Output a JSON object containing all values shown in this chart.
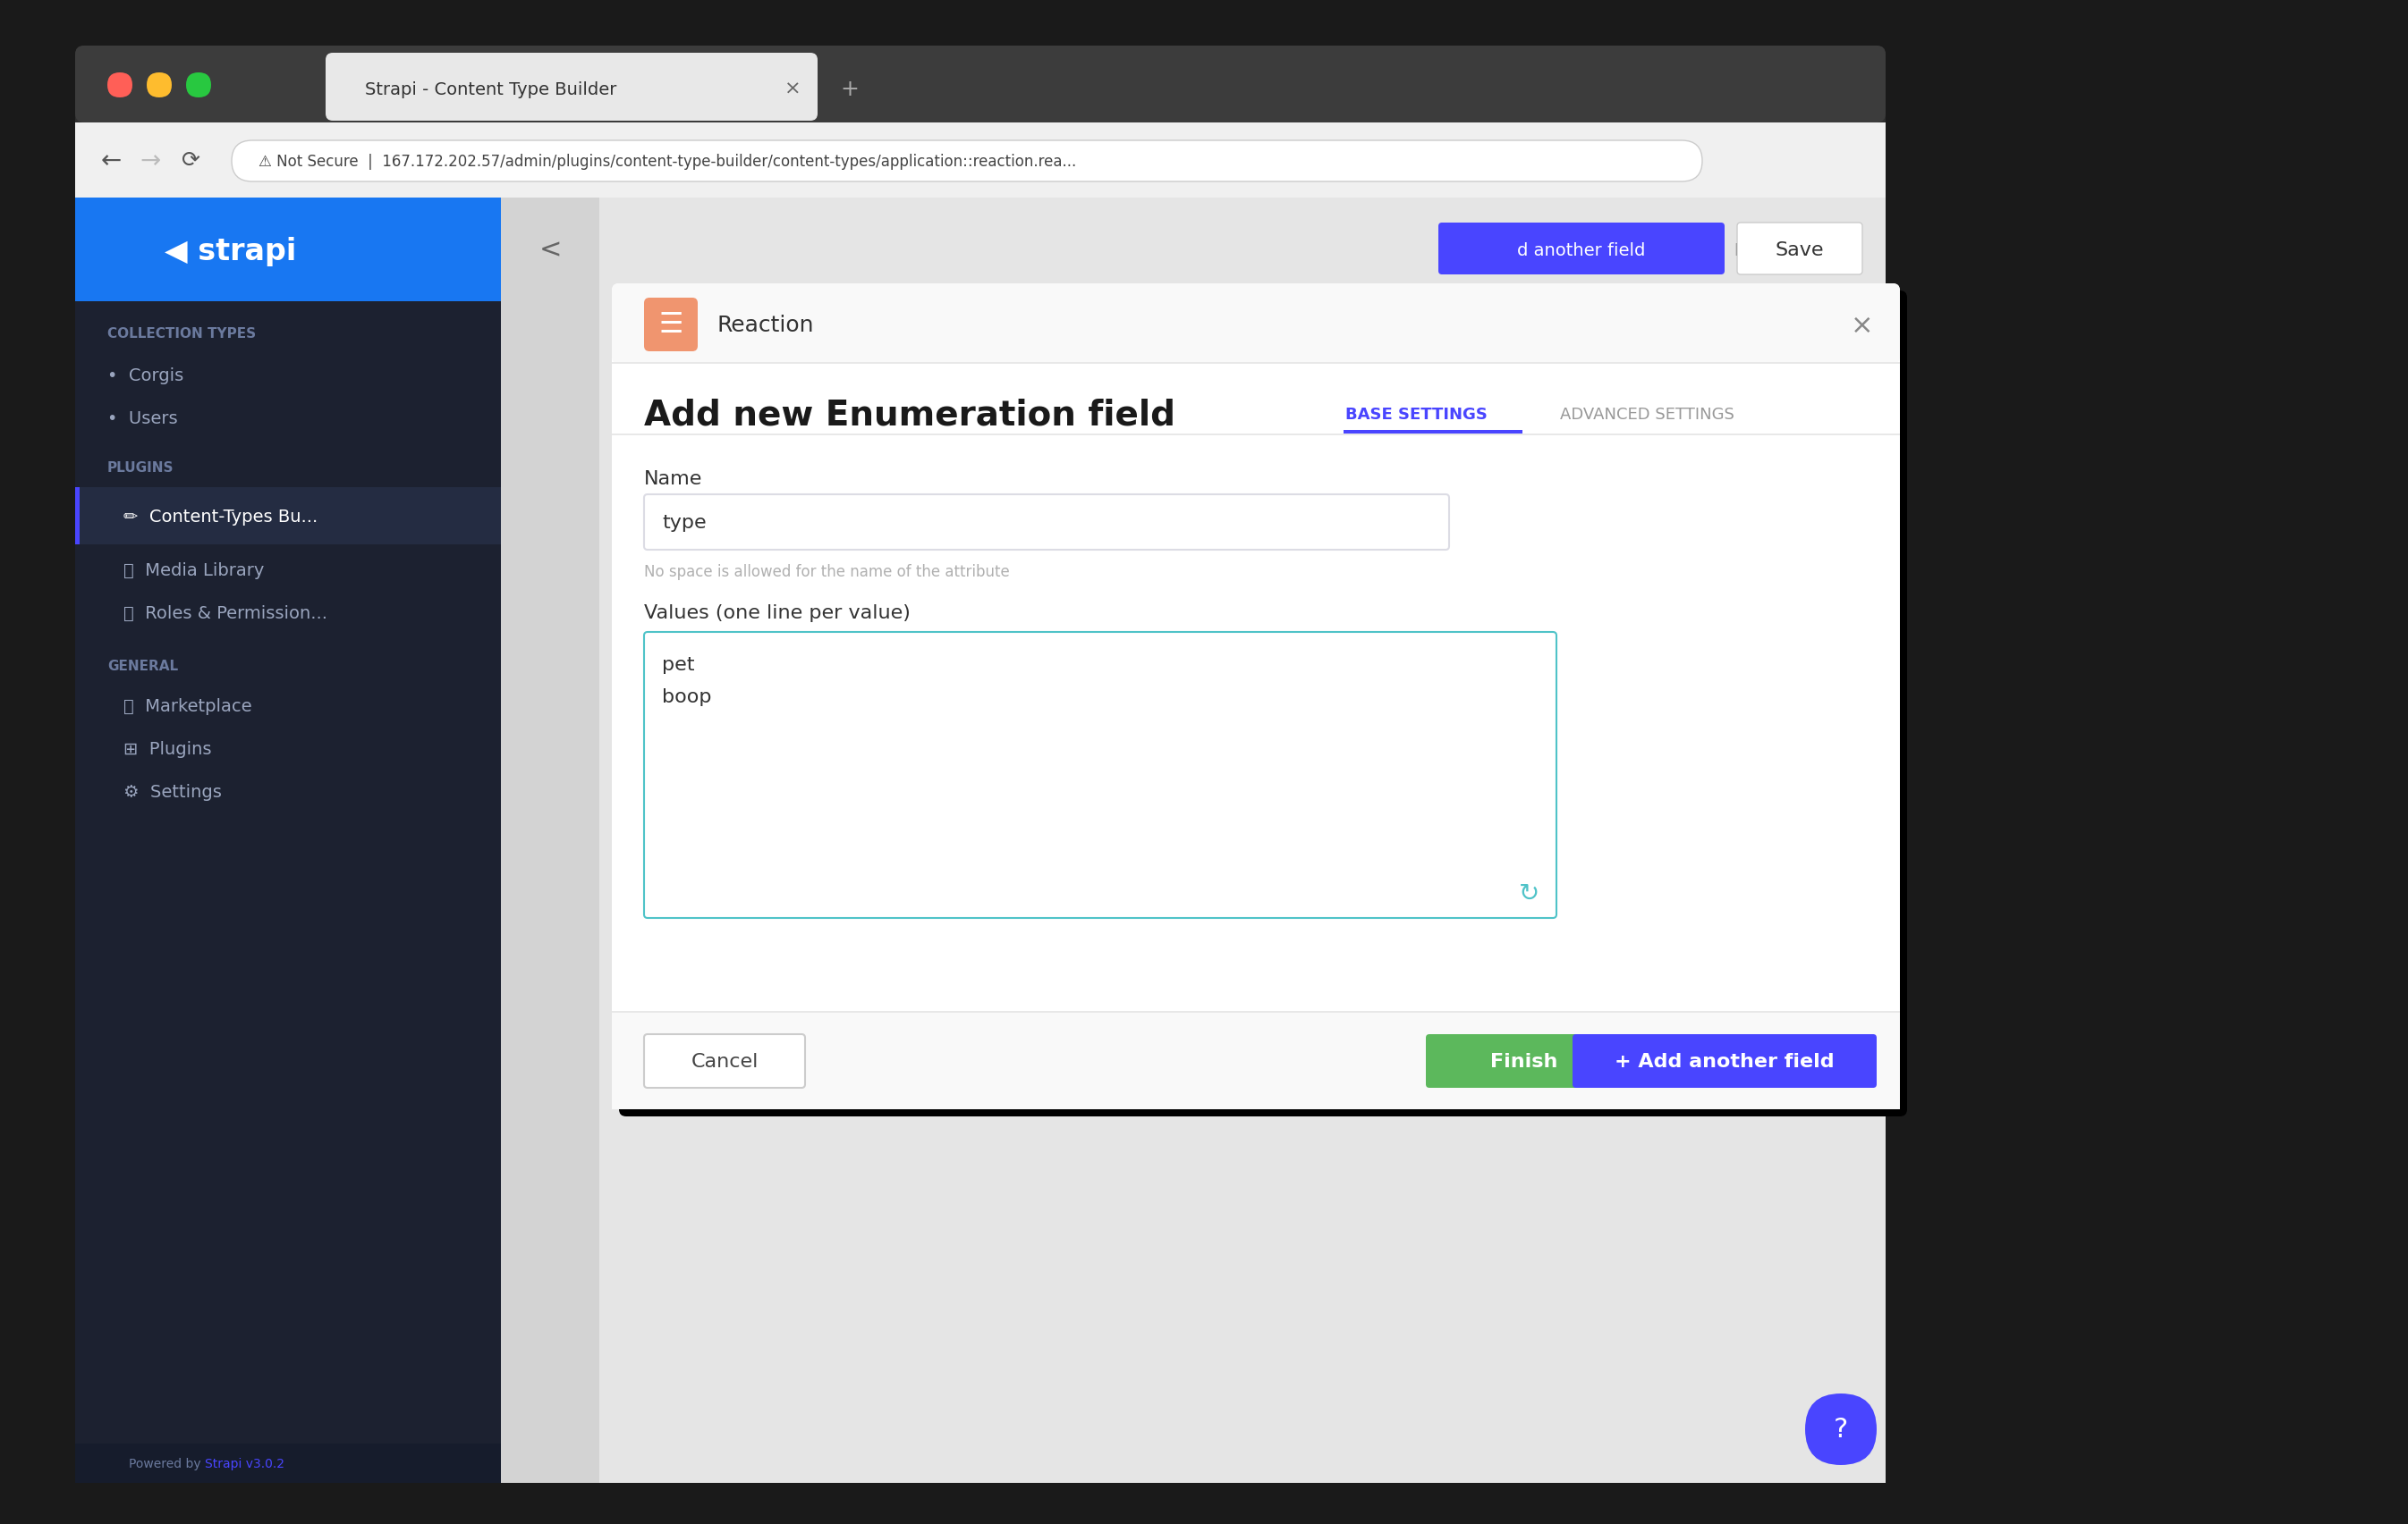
{
  "tab_text": "Strapi - Content Type Builder",
  "url_text": "⚠ Not Secure  |  167.172.202.57/admin/plugins/content-type-builder/content-types/application::reaction.rea...",
  "sidebar_bg": "#1c2130",
  "sidebar_header_bg": "#1877f2",
  "modal_title": "Reaction",
  "dialog_title": "Add new Enumeration field",
  "tab_base_settings": "BASE SETTINGS",
  "tab_advanced_settings": "ADVANCED SETTINGS",
  "field_name_label": "Name",
  "field_name_value": "type",
  "field_hint": "No space is allowed for the name of the attribute",
  "field_values_label": "Values (one line per value)",
  "btn_cancel_text": "Cancel",
  "btn_finish_text": "Finish",
  "btn_finish_bg": "#5cb85c",
  "btn_add_another_text": "+ Add another field",
  "btn_save_text": "Save",
  "top_add_another_text": "d another field",
  "powered_by_text": "Powered by ",
  "powered_by_link": "Strapi v3.0.2",
  "sidebar_section_collection": "COLLECTION TYPES",
  "sidebar_item1": "Corgis",
  "sidebar_item2": "Users",
  "sidebar_section_plugins": "PLUGINS",
  "sidebar_plugin1": "Content-Types Bu...",
  "sidebar_plugin2": "Media Library",
  "sidebar_plugin3": "Roles & Permission...",
  "sidebar_section_general": "GENERAL",
  "sidebar_general1": "Marketplace",
  "sidebar_general2": "Plugins",
  "sidebar_general3": "Settings",
  "browser_dark": "#292929",
  "tab_bar_dark": "#3c3c3c",
  "nav_bar_bg": "#f0f0f0",
  "content_bg": "#e5e5e5",
  "modal_bg": "#ffffff",
  "modal_header_bg": "#f9f9f9",
  "divider_col_bg": "#d3d3d3",
  "icon_orange_bg": "#f0956f",
  "strapi_blue": "#1a6ece",
  "tab_active_color": "#4945ff",
  "input_border_color": "#dcdce4",
  "textarea_border_color": "#4fc3c8",
  "hint_color": "#b0b0b0",
  "cancel_border": "#cccccc",
  "help_btn_bg": "#4945ff",
  "save_btn_bg": "#4945ff",
  "add_another_btn_bg": "#4945ff",
  "finish_btn_bg": "#5cb85c",
  "powered_link_color": "#4945ff",
  "active_sidebar_item_bg": "#242c42",
  "active_sidebar_border": "#4945ff"
}
